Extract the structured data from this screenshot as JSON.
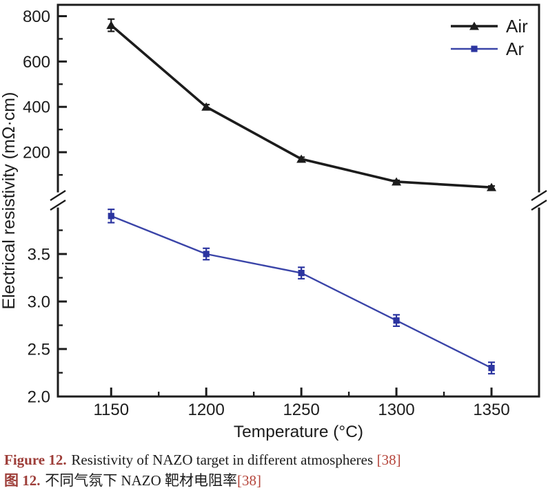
{
  "page": {
    "background": "#ffffff"
  },
  "chart_data": {
    "type": "line",
    "title": "",
    "xlabel": "Temperature (°C)",
    "ylabel": "Electrical resistivity (mΩ·cm)",
    "x": [
      1150,
      1200,
      1250,
      1300,
      1350
    ],
    "xlim": [
      1122,
      1375
    ],
    "x_major_ticks": [
      1150,
      1200,
      1250,
      1300,
      1350
    ],
    "x_minor_ticks": [
      1175,
      1225,
      1275,
      1325
    ],
    "broken_y_axis": {
      "top_segment": {
        "range": [
          0,
          850
        ],
        "major_ticks": [
          200,
          400,
          600,
          800
        ],
        "minor_ticks": [
          100,
          300,
          500,
          700
        ],
        "tick_format": "integer"
      },
      "bottom_segment": {
        "range": [
          2.0,
          4.0
        ],
        "major_ticks": [
          2.0,
          2.5,
          3.0,
          3.5
        ],
        "minor_ticks": [
          2.25,
          2.75,
          3.25,
          3.75
        ],
        "tick_format": "one-decimal"
      }
    },
    "series": [
      {
        "name": "Air",
        "axis_segment": "top",
        "marker": "triangle",
        "color": "#1c1c1c",
        "values": [
          760,
          400,
          170,
          70,
          45
        ],
        "errors": [
          27,
          10,
          8,
          6,
          6
        ]
      },
      {
        "name": "Ar",
        "axis_segment": "bottom",
        "marker": "square",
        "color": "#3a44a8",
        "marker_color": "#2c35a0",
        "values": [
          3.9,
          3.5,
          3.3,
          2.8,
          2.3
        ],
        "errors": [
          0.07,
          0.06,
          0.06,
          0.06,
          0.06
        ]
      }
    ],
    "legend": {
      "position": "top-right",
      "entries": [
        "Air",
        "Ar"
      ]
    },
    "grid": false
  },
  "caption": {
    "en": {
      "prefix": "Figure 12.",
      "text": "Resistivity of NAZO target in different atmospheres",
      "ref": "[38]"
    },
    "zh": {
      "prefix": "图 12.",
      "text": "不同气氛下 NAZO 靶材电阻率",
      "ref": "[38]"
    }
  },
  "colors": {
    "text": "#1c1c1c",
    "caption_prefix": "#9d3d38",
    "caption_ref": "#b5443a"
  }
}
